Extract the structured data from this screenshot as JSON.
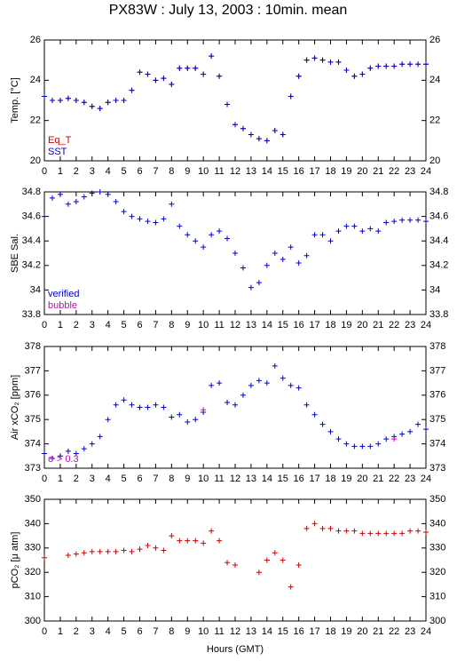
{
  "title": "PX83W : July 13, 2003 : 10min. mean",
  "chart_data": [
    {
      "type": "scatter",
      "ylabel": "Temp. [°C]",
      "legend": "lower left",
      "x": [
        0,
        0.5,
        1,
        1.5,
        2,
        2.5,
        3,
        3.5,
        4,
        4.5,
        5,
        5.5,
        6,
        6.5,
        7,
        7.5,
        8,
        8.5,
        9,
        9.5,
        10,
        10.5,
        11,
        11.5,
        12,
        12.5,
        13,
        13.5,
        14,
        14.5,
        15,
        15.5,
        16,
        16.5,
        17,
        17.5,
        18,
        18.5,
        19,
        19.5,
        20,
        20.5,
        21,
        21.5,
        22,
        22.5,
        23,
        23.5,
        24
      ],
      "xlim": [
        0,
        24
      ],
      "xticks": [
        0,
        1,
        2,
        3,
        4,
        5,
        6,
        7,
        8,
        9,
        10,
        11,
        12,
        13,
        14,
        15,
        16,
        17,
        18,
        19,
        20,
        21,
        22,
        23,
        24
      ],
      "ylim": [
        20,
        26
      ],
      "yticks": [
        20,
        22,
        24,
        26
      ],
      "series": [
        {
          "name": "Eq_T",
          "color": "#cc0000",
          "values": [
            23.2,
            23.0,
            23.0,
            23.1,
            23.0,
            22.9,
            22.7,
            22.6,
            22.9,
            23.0,
            23.0,
            23.5,
            24.4,
            24.3,
            24.0,
            24.1,
            23.8,
            24.6,
            24.6,
            24.6,
            24.3,
            25.2,
            24.2,
            22.8,
            21.8,
            21.6,
            21.3,
            21.1,
            21.0,
            21.5,
            21.3,
            23.2,
            24.2,
            25.0,
            25.1,
            25.0,
            24.9,
            24.9,
            24.5,
            24.2,
            24.3,
            24.6,
            24.7,
            24.7,
            24.7,
            24.8,
            24.8,
            24.8,
            24.8
          ]
        },
        {
          "name": "SST",
          "color": "#0000cc",
          "values": [
            23.2,
            23.0,
            23.0,
            23.1,
            23.0,
            22.9,
            22.7,
            22.6,
            22.9,
            23.0,
            23.0,
            23.5,
            24.4,
            24.3,
            24.0,
            24.1,
            23.8,
            24.6,
            24.6,
            24.6,
            24.3,
            25.2,
            24.2,
            22.8,
            21.8,
            21.6,
            21.3,
            21.1,
            21.0,
            21.5,
            21.3,
            23.2,
            24.2,
            25.0,
            25.1,
            25.0,
            24.9,
            24.9,
            24.5,
            24.2,
            24.3,
            24.6,
            24.7,
            24.7,
            24.7,
            24.8,
            24.8,
            24.8,
            24.8
          ]
        }
      ]
    },
    {
      "type": "scatter",
      "ylabel": "SBE Sal.",
      "legend": "lower left",
      "x": [
        0,
        0.5,
        1,
        1.5,
        2,
        2.5,
        3,
        3.5,
        4,
        4.5,
        5,
        5.5,
        6,
        6.5,
        7,
        7.5,
        8,
        8.5,
        9,
        9.5,
        10,
        10.5,
        11,
        11.5,
        12,
        12.5,
        13,
        13.5,
        14,
        14.5,
        15,
        15.5,
        16,
        16.5,
        17,
        17.5,
        18,
        18.5,
        19,
        19.5,
        20,
        20.5,
        21,
        21.5,
        22,
        22.5,
        23,
        23.5,
        24
      ],
      "xlim": [
        0,
        24
      ],
      "xticks": [
        0,
        1,
        2,
        3,
        4,
        5,
        6,
        7,
        8,
        9,
        10,
        11,
        12,
        13,
        14,
        15,
        16,
        17,
        18,
        19,
        20,
        21,
        22,
        23,
        24
      ],
      "ylim": [
        33.8,
        34.8
      ],
      "yticks": [
        33.8,
        34,
        34.2,
        34.4,
        34.6,
        34.8
      ],
      "series": [
        {
          "name": "verified",
          "color": "#0000cc",
          "values": [
            34.6,
            34.75,
            34.78,
            34.7,
            34.72,
            34.76,
            34.79,
            34.8,
            34.78,
            34.72,
            34.64,
            34.6,
            34.58,
            34.56,
            34.55,
            34.58,
            34.7,
            34.52,
            34.45,
            34.4,
            34.35,
            34.45,
            34.48,
            34.42,
            34.3,
            34.18,
            34.02,
            34.06,
            34.2,
            34.3,
            34.25,
            34.35,
            34.22,
            34.28,
            34.45,
            34.45,
            34.4,
            34.48,
            34.52,
            34.52,
            34.48,
            34.5,
            34.48,
            34.55,
            34.56,
            34.57,
            34.57,
            34.57,
            34.56
          ]
        },
        {
          "name": "bubble",
          "color": "#cc00cc",
          "values": [
            null,
            null,
            null,
            null,
            null,
            null,
            null,
            null,
            null,
            null,
            null,
            null,
            null,
            null,
            null,
            null,
            null,
            null,
            null,
            null,
            null,
            null,
            null,
            null,
            null,
            null,
            null,
            null,
            null,
            null,
            null,
            null,
            null,
            null,
            null,
            null,
            null,
            null,
            null,
            null,
            null,
            null,
            null,
            null,
            null,
            null,
            null,
            null,
            null
          ]
        }
      ]
    },
    {
      "type": "scatter",
      "ylabel": "Air xCO₂ [ppm]",
      "legend": "lower left",
      "x": [
        0,
        0.5,
        1,
        1.5,
        2,
        2.5,
        3,
        3.5,
        4,
        4.5,
        5,
        5.5,
        6,
        6.5,
        7,
        7.5,
        8,
        8.5,
        9,
        9.5,
        10,
        10.5,
        11,
        11.5,
        12,
        12.5,
        13,
        13.5,
        14,
        14.5,
        15,
        15.5,
        16,
        16.5,
        17,
        17.5,
        18,
        18.5,
        19,
        19.5,
        20,
        20.5,
        21,
        21.5,
        22,
        22.5,
        23,
        23.5,
        24
      ],
      "xlim": [
        0,
        24
      ],
      "xticks": [
        0,
        1,
        2,
        3,
        4,
        5,
        6,
        7,
        8,
        9,
        10,
        11,
        12,
        13,
        14,
        15,
        16,
        17,
        18,
        19,
        20,
        21,
        22,
        23,
        24
      ],
      "ylim": [
        373,
        378
      ],
      "yticks": [
        373,
        374,
        375,
        376,
        377,
        378
      ],
      "series": [
        {
          "color": "#0000cc",
          "values": [
            373.6,
            373.4,
            373.5,
            373.7,
            373.6,
            373.8,
            374.0,
            374.3,
            375.0,
            375.6,
            375.8,
            375.6,
            375.5,
            375.5,
            375.6,
            375.5,
            375.1,
            375.2,
            374.9,
            375.0,
            375.3,
            376.4,
            376.5,
            375.7,
            375.6,
            376.0,
            376.4,
            376.6,
            376.5,
            377.2,
            376.7,
            376.4,
            376.3,
            375.6,
            375.2,
            374.8,
            374.5,
            374.2,
            374.0,
            373.9,
            373.9,
            373.9,
            374.0,
            374.2,
            374.3,
            374.4,
            374.5,
            374.8,
            374.6
          ]
        },
        {
          "name": "σ > 0.3",
          "color": "#cc00cc",
          "values": [
            null,
            null,
            null,
            null,
            null,
            null,
            null,
            null,
            null,
            null,
            null,
            null,
            null,
            null,
            null,
            null,
            null,
            null,
            null,
            null,
            375.4,
            null,
            null,
            null,
            null,
            null,
            null,
            null,
            null,
            null,
            null,
            null,
            null,
            null,
            null,
            null,
            null,
            null,
            null,
            null,
            null,
            null,
            null,
            null,
            374.2,
            null,
            null,
            null,
            null
          ]
        }
      ]
    },
    {
      "type": "scatter",
      "ylabel": "pCO₂ [μ atm]",
      "xlabel": "Hours (GMT)",
      "x": [
        0,
        0.5,
        1,
        1.5,
        2,
        2.5,
        3,
        3.5,
        4,
        4.5,
        5,
        5.5,
        6,
        6.5,
        7,
        7.5,
        8,
        8.5,
        9,
        9.5,
        10,
        10.5,
        11,
        11.5,
        12,
        12.5,
        13,
        13.5,
        14,
        14.5,
        15,
        15.5,
        16,
        16.5,
        17,
        17.5,
        18,
        18.5,
        19,
        19.5,
        20,
        20.5,
        21,
        21.5,
        22,
        22.5,
        23,
        23.5,
        24
      ],
      "xlim": [
        0,
        24
      ],
      "xticks": [
        0,
        1,
        2,
        3,
        4,
        5,
        6,
        7,
        8,
        9,
        10,
        11,
        12,
        13,
        14,
        15,
        16,
        17,
        18,
        19,
        20,
        21,
        22,
        23,
        24
      ],
      "ylim": [
        300,
        350
      ],
      "yticks": [
        300,
        310,
        320,
        330,
        340,
        350
      ],
      "series": [
        {
          "color": "#cc0000",
          "values": [
            326,
            null,
            null,
            327,
            327.5,
            328,
            328.5,
            328.5,
            328.5,
            328.5,
            329,
            328.5,
            329.5,
            331,
            330,
            329,
            335,
            333,
            333,
            333,
            332,
            337,
            333,
            324,
            323,
            null,
            null,
            320,
            325,
            328,
            325,
            314,
            323,
            338,
            340,
            338,
            338,
            337,
            337,
            337,
            336,
            336,
            336,
            336,
            336,
            336,
            337,
            337,
            336.5
          ]
        }
      ]
    }
  ]
}
